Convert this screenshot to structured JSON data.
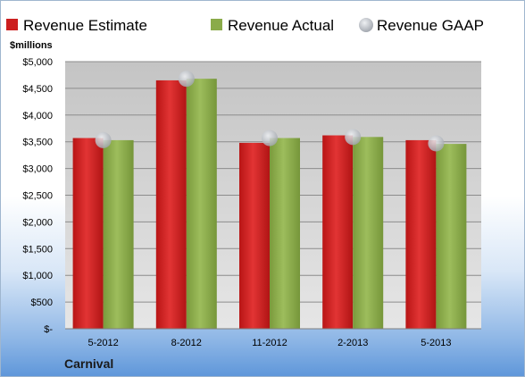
{
  "chart_data": {
    "type": "bar",
    "categories": [
      "5-2012",
      "8-2012",
      "11-2012",
      "2-2013",
      "5-2013"
    ],
    "series": [
      {
        "name": "Revenue Estimate",
        "values": [
          3570,
          4650,
          3480,
          3620,
          3530
        ],
        "color": "#cc1f1f"
      },
      {
        "name": "Revenue Actual",
        "values": [
          3530,
          4680,
          3570,
          3590,
          3460
        ],
        "color": "#8aab4a"
      },
      {
        "name": "Revenue GAAP",
        "values": [
          3530,
          4680,
          3570,
          3590,
          3470
        ],
        "color": "#b8bcc4"
      }
    ],
    "ylabel": "$millions",
    "ylim": [
      0,
      5000
    ],
    "yticks": [
      "$-",
      "$500",
      "$1,000",
      "$1,500",
      "$2,000",
      "$2,500",
      "$3,000",
      "$3,500",
      "$4,000",
      "$4,500",
      "$5,000"
    ],
    "ytick_values": [
      0,
      500,
      1000,
      1500,
      2000,
      2500,
      3000,
      3500,
      4000,
      4500,
      5000
    ],
    "legend_position": "top",
    "grid": true,
    "footer_label": "Carnival"
  }
}
